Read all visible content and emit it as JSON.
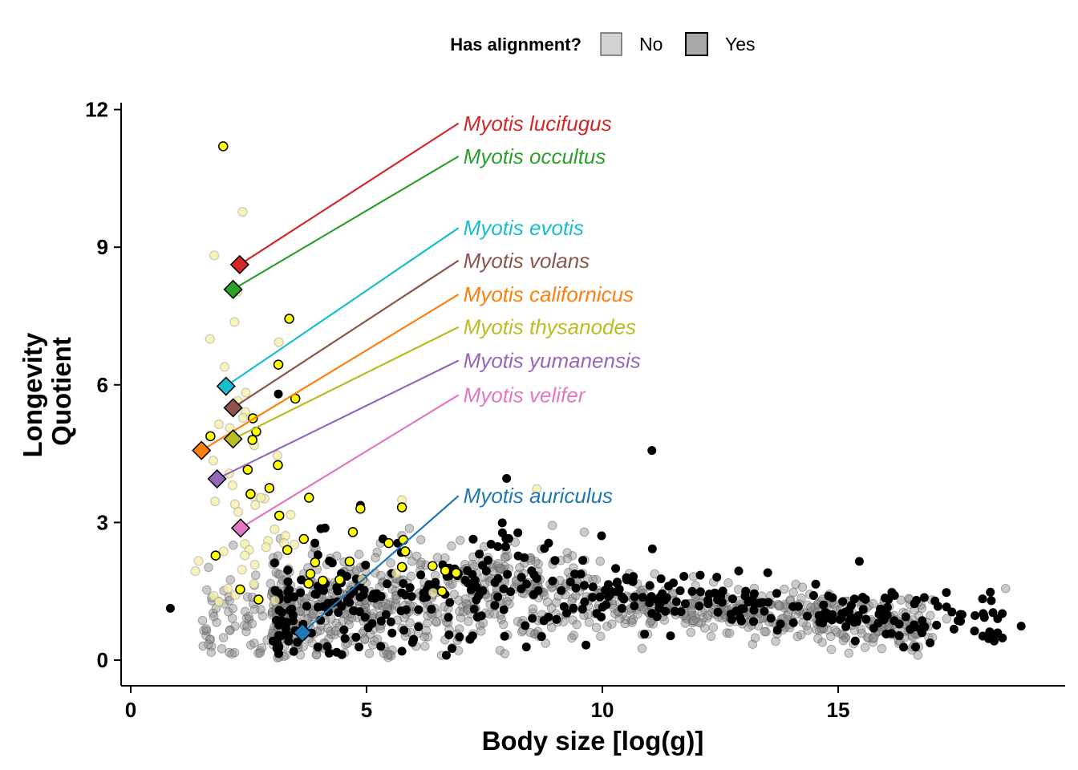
{
  "chart_data": {
    "type": "scatter",
    "xlabel": "Body size [log(g)]",
    "ylabel": "Longevity Quotient",
    "xlim": [
      -0.5,
      19.5
    ],
    "ylim": [
      -0.55,
      12.2
    ],
    "xticks": [
      0,
      5,
      10,
      15
    ],
    "yticks": [
      0,
      3,
      6,
      9,
      12
    ],
    "grid": false,
    "legend": {
      "title": "Has alignment?",
      "placement": "top",
      "entries": [
        {
          "label": "No",
          "fill": "#d3d3d3"
        },
        {
          "label": "Yes",
          "fill": "#a9a9a9"
        }
      ]
    },
    "colors": {
      "bats_with_alignment": "#ffff00",
      "bats_without_alignment": "#f5f0a8",
      "mammals_with_alignment": "#000000",
      "mammals_without_alignment": "#8c8c8c"
    },
    "highlighted_species": [
      {
        "name": "Myotis lucifugus",
        "x": 2.31,
        "y": 8.62,
        "label_y": 11.7,
        "color": "#d62728"
      },
      {
        "name": "Myotis occultus",
        "x": 2.17,
        "y": 8.08,
        "label_y": 10.98,
        "color": "#2ca02c"
      },
      {
        "name": "Myotis evotis",
        "x": 2.02,
        "y": 5.97,
        "label_y": 9.42,
        "color": "#17becf"
      },
      {
        "name": "Myotis volans",
        "x": 2.17,
        "y": 5.5,
        "label_y": 8.71,
        "color": "#8c564b"
      },
      {
        "name": "Myotis californicus",
        "x": 1.5,
        "y": 4.57,
        "label_y": 7.97,
        "color": "#ff7f0e"
      },
      {
        "name": "Myotis thysanodes",
        "x": 2.17,
        "y": 4.82,
        "label_y": 7.26,
        "color": "#bcbd22"
      },
      {
        "name": "Myotis yumanensis",
        "x": 1.83,
        "y": 3.95,
        "label_y": 6.53,
        "color": "#9467bd"
      },
      {
        "name": "Myotis velifer",
        "x": 2.33,
        "y": 2.88,
        "label_y": 5.78,
        "color": "#e377c2"
      },
      {
        "name": "Myotis auriculus",
        "x": 3.64,
        "y": 0.6,
        "label_y": 3.58,
        "color": "#1f77b4"
      }
    ],
    "label_x": 6.95,
    "bats_with_alignment": [
      [
        1.96,
        11.2
      ],
      [
        3.36,
        7.44
      ],
      [
        3.13,
        6.44
      ],
      [
        3.49,
        5.7
      ],
      [
        2.59,
        5.27
      ],
      [
        2.66,
        4.98
      ],
      [
        2.58,
        4.8
      ],
      [
        1.69,
        4.88
      ],
      [
        2.48,
        4.15
      ],
      [
        3.12,
        4.25
      ],
      [
        2.94,
        3.75
      ],
      [
        2.54,
        3.62
      ],
      [
        3.78,
        3.54
      ],
      [
        3.15,
        3.15
      ],
      [
        4.87,
        3.3
      ],
      [
        5.75,
        3.33
      ],
      [
        4.71,
        2.79
      ],
      [
        3.67,
        2.64
      ],
      [
        5.78,
        2.62
      ],
      [
        5.47,
        2.55
      ],
      [
        5.82,
        2.37
      ],
      [
        3.32,
        2.4
      ],
      [
        1.8,
        2.28
      ],
      [
        4.64,
        2.15
      ],
      [
        3.91,
        2.13
      ],
      [
        5.75,
        2.03
      ],
      [
        6.4,
        2.05
      ],
      [
        6.67,
        1.95
      ],
      [
        3.81,
        1.88
      ],
      [
        4.43,
        1.75
      ],
      [
        4.07,
        1.73
      ],
      [
        3.77,
        1.67
      ],
      [
        6.9,
        1.9
      ],
      [
        6.6,
        1.5
      ],
      [
        2.71,
        1.32
      ],
      [
        2.32,
        1.54
      ]
    ],
    "bats_without_alignment": [
      [
        1.77,
        8.82
      ],
      [
        2.37,
        9.77
      ],
      [
        1.68,
        7.0
      ],
      [
        2.2,
        7.37
      ],
      [
        3.14,
        6.93
      ],
      [
        2.27,
        8.03
      ],
      [
        1.99,
        6.39
      ],
      [
        2.44,
        5.83
      ],
      [
        2.27,
        5.65
      ],
      [
        2.43,
        5.41
      ],
      [
        2.1,
        5.06
      ],
      [
        1.87,
        5.14
      ],
      [
        2.38,
        5.28
      ],
      [
        2.62,
        4.68
      ],
      [
        3.11,
        4.46
      ],
      [
        1.75,
        4.35
      ],
      [
        2.09,
        4.07
      ],
      [
        2.16,
        3.81
      ],
      [
        1.79,
        3.46
      ],
      [
        2.21,
        3.4
      ],
      [
        2.84,
        3.52
      ],
      [
        2.64,
        3.38
      ],
      [
        2.6,
        3.57
      ],
      [
        2.28,
        3.23
      ],
      [
        2.76,
        3.54
      ],
      [
        3.39,
        3.17
      ],
      [
        2.42,
        2.53
      ],
      [
        3.28,
        2.71
      ],
      [
        2.91,
        2.6
      ],
      [
        3.05,
        2.85
      ],
      [
        1.97,
        2.37
      ],
      [
        2.51,
        2.4
      ],
      [
        2.87,
        2.46
      ],
      [
        3.25,
        2.55
      ],
      [
        2.42,
        2.28
      ],
      [
        2.63,
        2.08
      ],
      [
        1.44,
        2.16
      ],
      [
        1.37,
        1.94
      ],
      [
        2.36,
        1.97
      ],
      [
        1.76,
        1.4
      ],
      [
        2.06,
        1.56
      ],
      [
        2.61,
        1.66
      ],
      [
        1.87,
        1.27
      ],
      [
        2.22,
        1.42
      ],
      [
        3.47,
        2.52
      ],
      [
        5.75,
        3.49
      ],
      [
        8.61,
        3.73
      ],
      [
        4.91,
        1.76
      ],
      [
        5.63,
        1.89
      ],
      [
        6.41,
        1.47
      ],
      [
        3.06,
        1.3
      ]
    ]
  }
}
